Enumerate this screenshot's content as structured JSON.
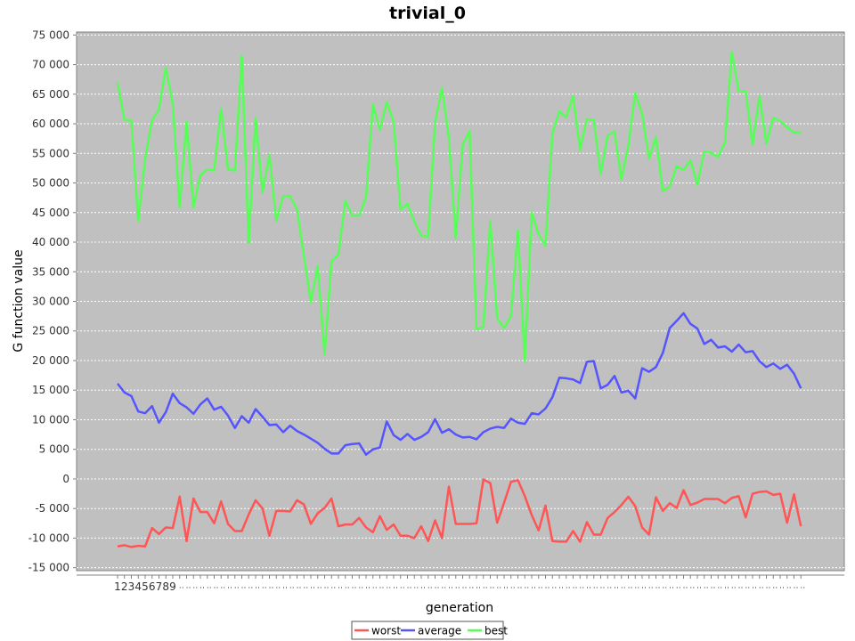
{
  "chart_data": {
    "type": "line",
    "title": "trivial_0",
    "xlabel": "generation",
    "ylabel": "G function value",
    "ylim": [
      -15500,
      75500
    ],
    "y_ticks": [
      -15000,
      -10000,
      -5000,
      0,
      5000,
      10000,
      15000,
      20000,
      25000,
      30000,
      35000,
      40000,
      45000,
      50000,
      55000,
      60000,
      65000,
      70000,
      75000
    ],
    "y_tick_labels": [
      "-15 000",
      "-10 000",
      "-5 000",
      "0",
      "5 000",
      "10 000",
      "15 000",
      "20 000",
      "25 000",
      "30 000",
      "35 000",
      "40 000",
      "45 000",
      "50 000",
      "55 000",
      "60 000",
      "65 000",
      "70 000",
      "75 000"
    ],
    "x_tick_labels": [
      "1",
      "2",
      "3",
      "4",
      "5",
      "6",
      "7",
      "8",
      "9"
    ],
    "grid": true,
    "legend_position": "bottom-center",
    "series": [
      {
        "name": "worst",
        "color": "#ff5555",
        "values": [
          -11400,
          -11200,
          -11500,
          -11300,
          -11400,
          -8300,
          -9300,
          -8200,
          -8300,
          -3000,
          -10500,
          -3300,
          -5600,
          -5600,
          -7500,
          -3800,
          -7600,
          -8800,
          -8800,
          -6000,
          -3600,
          -5000,
          -9600,
          -5400,
          -5400,
          -5500,
          -3600,
          -4300,
          -7600,
          -5800,
          -4900,
          -3300,
          -8000,
          -7700,
          -7700,
          -6600,
          -8200,
          -9000,
          -6300,
          -8600,
          -7700,
          -9600,
          -9600,
          -10000,
          -8000,
          -10500,
          -7000,
          -10000,
          -1300,
          -7600,
          -7600,
          -7600,
          -7500,
          -100,
          -700,
          -7400,
          -4000,
          -500,
          -200,
          -2900,
          -6100,
          -8700,
          -4500,
          -10500,
          -10600,
          -10600,
          -8800,
          -10600,
          -7300,
          -9400,
          -9400,
          -6600,
          -5600,
          -4400,
          -3000,
          -4600,
          -8200,
          -9400,
          -3100,
          -5400,
          -4100,
          -4900,
          -1900,
          -4400,
          -4000,
          -3400,
          -3400,
          -3400,
          -4100,
          -3200,
          -2900,
          -6500,
          -2500,
          -2200,
          -2100,
          -2700,
          -2500,
          -7400,
          -2600,
          -8000
        ]
      },
      {
        "name": "average",
        "color": "#5555ff",
        "values": [
          16100,
          14600,
          14000,
          11400,
          11100,
          12300,
          9500,
          11300,
          14400,
          12800,
          12100,
          11000,
          12600,
          13600,
          11700,
          12200,
          10700,
          8600,
          10600,
          9500,
          11800,
          10500,
          9100,
          9200,
          7900,
          9000,
          8100,
          7500,
          6800,
          6100,
          5100,
          4300,
          4300,
          5700,
          5900,
          6000,
          4100,
          5000,
          5300,
          9700,
          7400,
          6600,
          7600,
          6600,
          7100,
          7900,
          10100,
          7800,
          8400,
          7500,
          7000,
          7100,
          6700,
          7900,
          8500,
          8800,
          8600,
          10200,
          9500,
          9300,
          11100,
          10900,
          11900,
          13800,
          17100,
          17000,
          16800,
          16200,
          19800,
          19900,
          15300,
          15900,
          17400,
          14600,
          14900,
          13600,
          18700,
          18100,
          18900,
          21300,
          25500,
          26700,
          28000,
          26200,
          25400,
          22800,
          23500,
          22200,
          22400,
          21500,
          22700,
          21400,
          21600,
          19900,
          18900,
          19500,
          18600,
          19300,
          17800,
          15300
        ]
      },
      {
        "name": "best",
        "color": "#55ff55",
        "values": [
          67000,
          60700,
          60500,
          43600,
          54100,
          60600,
          62400,
          69500,
          63400,
          45900,
          60400,
          45900,
          51300,
          52300,
          52100,
          62600,
          52300,
          52100,
          71400,
          39900,
          61000,
          48400,
          54800,
          43600,
          47800,
          47800,
          45600,
          37700,
          29800,
          36000,
          21000,
          36800,
          37900,
          47000,
          44500,
          44500,
          47600,
          63300,
          58900,
          63700,
          60300,
          45500,
          46500,
          43500,
          41100,
          40900,
          60200,
          66100,
          57600,
          40700,
          56400,
          58800,
          25300,
          25700,
          43600,
          27100,
          25500,
          27500,
          42000,
          19900,
          45000,
          41300,
          39400,
          58400,
          62100,
          61100,
          64700,
          55600,
          60800,
          60600,
          51500,
          58000,
          58700,
          50600,
          56300,
          65200,
          61700,
          54100,
          57800,
          48600,
          49400,
          52800,
          52200,
          53800,
          49700,
          55300,
          55100,
          54400,
          56800,
          72100,
          65500,
          65500,
          56500,
          64700,
          56600,
          61000,
          60500,
          59400,
          58500,
          58500
        ]
      }
    ]
  }
}
